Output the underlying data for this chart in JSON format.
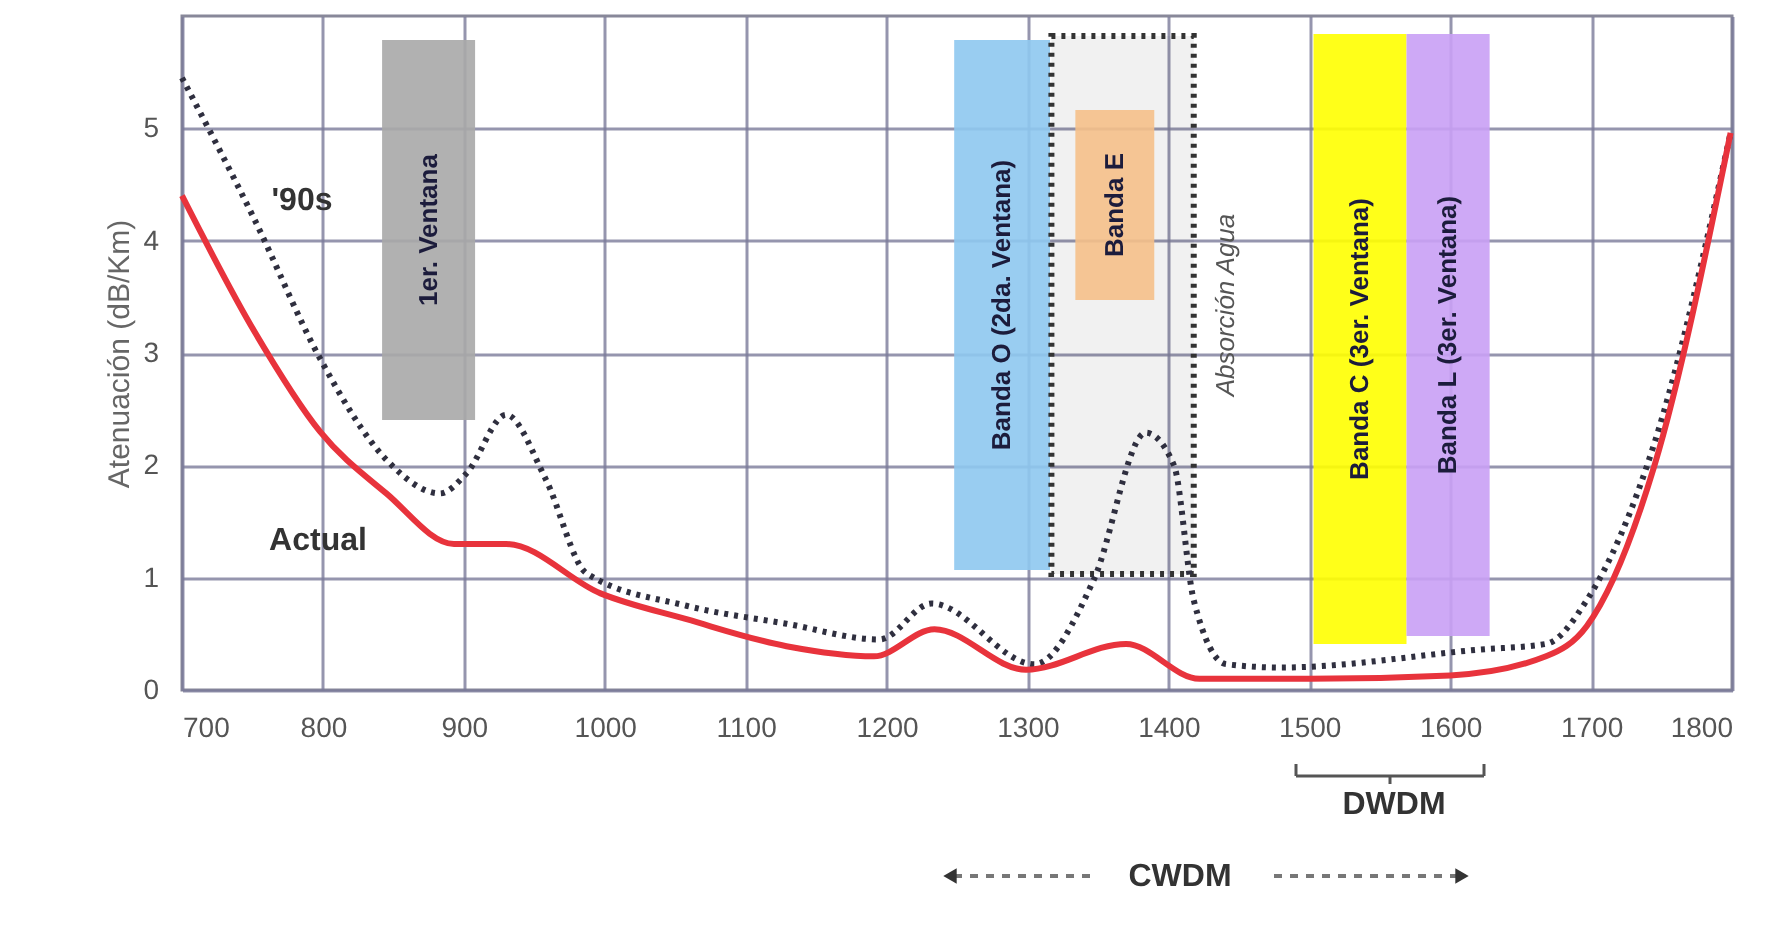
{
  "chart_data": {
    "type": "line",
    "ylabel": "Atenuación (dB/Km)",
    "xlim": [
      700,
      1800
    ],
    "ylim": [
      0,
      6
    ],
    "xticks": [
      700,
      800,
      900,
      1000,
      1100,
      1200,
      1300,
      1400,
      1500,
      1600,
      1700,
      1800
    ],
    "yticks": [
      0,
      1,
      2,
      3,
      4,
      5
    ],
    "grid": true,
    "series": [
      {
        "name": "'90s",
        "color": "#2f2f3f",
        "line_style": "dotted",
        "x": [
          700,
          751,
          798,
          845,
          883,
          902,
          930,
          958,
          987,
          1058,
          1129,
          1195,
          1232,
          1305,
          1347,
          1384,
          1404,
          1418,
          1441,
          1479,
          1621,
          1668,
          1697,
          1745,
          1799
        ],
        "values": [
          5.45,
          4.2,
          2.95,
          2.05,
          1.75,
          1.93,
          2.45,
          1.88,
          1.04,
          0.75,
          0.59,
          0.45,
          0.77,
          0.23,
          0.98,
          2.29,
          2.0,
          0.8,
          0.23,
          0.2,
          0.36,
          0.41,
          0.8,
          2.2,
          4.96
        ]
      },
      {
        "name": "Actual",
        "color": "#e8333c",
        "line_style": "solid",
        "x": [
          700,
          751,
          798,
          845,
          893,
          930,
          997,
          1058,
          1129,
          1191,
          1234,
          1299,
          1370,
          1422,
          1500,
          1600,
          1668,
          1697,
          1745,
          1799
        ],
        "values": [
          4.4,
          3.2,
          2.3,
          1.75,
          1.3,
          1.3,
          0.86,
          0.63,
          0.39,
          0.3,
          0.54,
          0.18,
          0.41,
          0.1,
          0.1,
          0.13,
          0.3,
          0.57,
          2.0,
          4.96
        ]
      }
    ],
    "bands": [
      {
        "axis": "x",
        "from": 842,
        "to": 908,
        "label": "1er. Ventana",
        "color": "#a8a8a8"
      },
      {
        "axis": "x",
        "from": 1248,
        "to": 1316,
        "label": "Banda O (2da. Ventana)",
        "color": "#8ec8f0"
      },
      {
        "axis": "x",
        "from": 1317,
        "to": 1418,
        "label": "Absorción Agua",
        "color": "#333333"
      },
      {
        "axis": "x",
        "from": 1334,
        "to": 1390,
        "label": "Banda E",
        "color": "#f5c08a"
      },
      {
        "axis": "x",
        "from": 1503,
        "to": 1569,
        "label": "Banda C (3er. Ventana)",
        "color": "#ffff00"
      },
      {
        "axis": "x",
        "from": 1569,
        "to": 1628,
        "label": "Banda L (3er. Ventana)",
        "color": "#c9a0f5"
      }
    ],
    "annotations": [
      "DWDM",
      "CWDM"
    ]
  }
}
